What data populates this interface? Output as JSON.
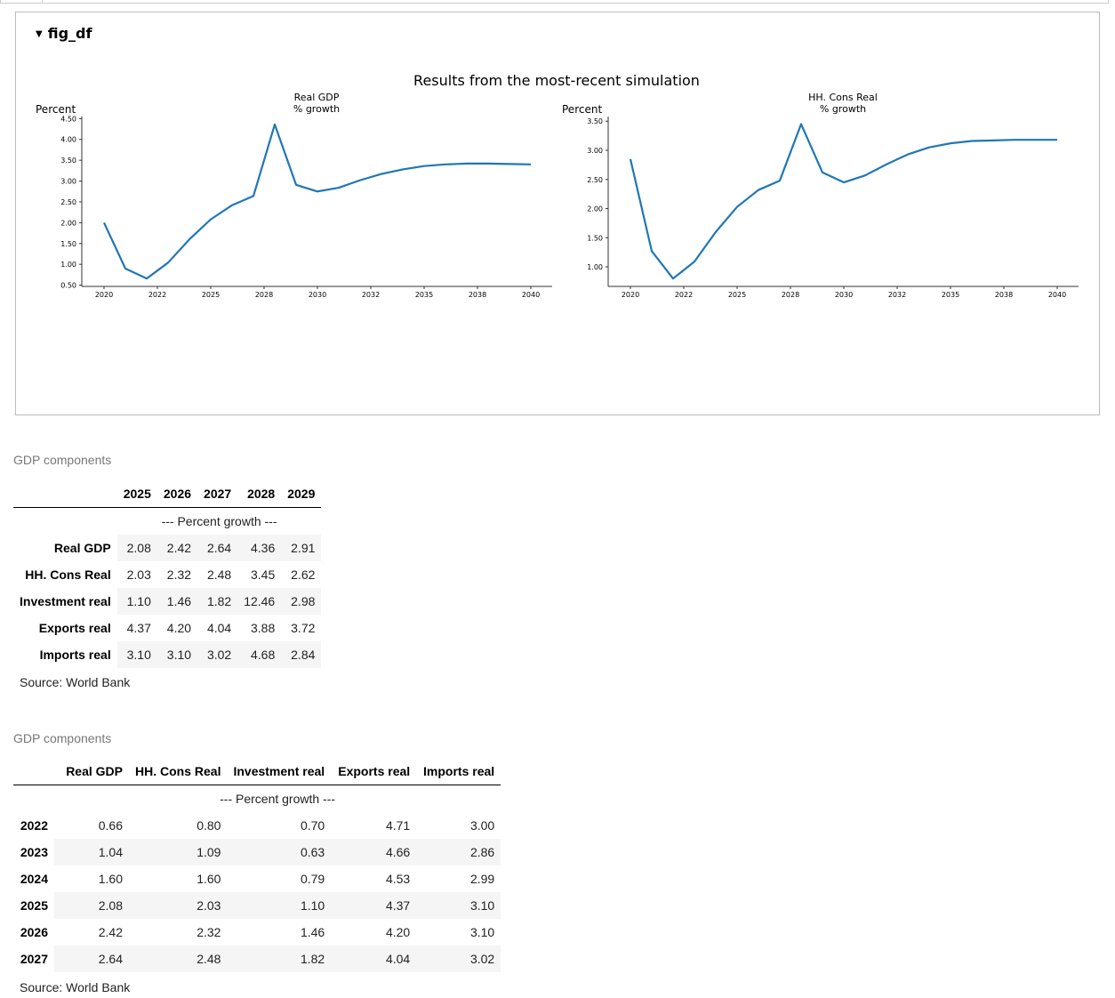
{
  "figure": {
    "toggle_label": "fig_df",
    "suptitle": "Results from the most-recent simulation"
  },
  "chart_data": [
    {
      "type": "line",
      "title": "Real GDP\n% growth",
      "title_lines": [
        "Real GDP",
        "% growth"
      ],
      "ylabel": "Percent",
      "xlabel": "",
      "x": [
        2020,
        2021,
        2022,
        2023,
        2024,
        2025,
        2026,
        2027,
        2028,
        2029,
        2030,
        2031,
        2032,
        2033,
        2034,
        2035,
        2036,
        2037,
        2038,
        2039,
        2040
      ],
      "values": [
        2.0,
        0.9,
        0.66,
        1.04,
        1.6,
        2.08,
        2.42,
        2.64,
        4.36,
        2.91,
        2.75,
        2.84,
        3.02,
        3.17,
        3.28,
        3.36,
        3.4,
        3.42,
        3.42,
        3.41,
        3.4
      ],
      "xtick_labels": [
        "2020",
        "2022",
        "2025",
        "2028",
        "2030",
        "2032",
        "2035",
        "2038",
        "2040"
      ],
      "ytick_labels": [
        "0.50",
        "1.00",
        "1.50",
        "2.00",
        "2.50",
        "3.00",
        "3.50",
        "4.00",
        "4.50"
      ],
      "yticks": [
        0.5,
        1.0,
        1.5,
        2.0,
        2.5,
        3.0,
        3.5,
        4.0,
        4.5
      ],
      "ylim": [
        0.47,
        4.55
      ],
      "color": "#1f77b4",
      "grid": false
    },
    {
      "type": "line",
      "title": "HH. Cons Real\n% growth",
      "title_lines": [
        "HH. Cons Real",
        "% growth"
      ],
      "ylabel": "Percent",
      "xlabel": "",
      "x": [
        2020,
        2021,
        2022,
        2023,
        2024,
        2025,
        2026,
        2027,
        2028,
        2029,
        2030,
        2031,
        2032,
        2033,
        2034,
        2035,
        2036,
        2037,
        2038,
        2039,
        2040
      ],
      "values": [
        2.85,
        1.27,
        0.8,
        1.09,
        1.6,
        2.03,
        2.32,
        2.48,
        3.45,
        2.62,
        2.45,
        2.57,
        2.76,
        2.93,
        3.05,
        3.12,
        3.16,
        3.17,
        3.18,
        3.18,
        3.18
      ],
      "xtick_labels": [
        "2020",
        "2022",
        "2025",
        "2028",
        "2030",
        "2032",
        "2035",
        "2038",
        "2040"
      ],
      "ytick_labels": [
        "1.00",
        "1.50",
        "2.00",
        "2.50",
        "3.00",
        "3.50"
      ],
      "yticks": [
        1.0,
        1.5,
        2.0,
        2.5,
        3.0,
        3.5
      ],
      "ylim": [
        0.665,
        3.58
      ],
      "color": "#1f77b4",
      "grid": false
    }
  ],
  "table1": {
    "caption": "GDP components",
    "columns": [
      "2025",
      "2026",
      "2027",
      "2028",
      "2029"
    ],
    "subheader": "--- Percent growth ---",
    "rows": [
      {
        "label": "Real GDP",
        "values": [
          "2.08",
          "2.42",
          "2.64",
          "4.36",
          "2.91"
        ]
      },
      {
        "label": "HH. Cons Real",
        "values": [
          "2.03",
          "2.32",
          "2.48",
          "3.45",
          "2.62"
        ]
      },
      {
        "label": "Investment real",
        "values": [
          "1.10",
          "1.46",
          "1.82",
          "12.46",
          "2.98"
        ]
      },
      {
        "label": "Exports real",
        "values": [
          "4.37",
          "4.20",
          "4.04",
          "3.88",
          "3.72"
        ]
      },
      {
        "label": "Imports real",
        "values": [
          "3.10",
          "3.10",
          "3.02",
          "4.68",
          "2.84"
        ]
      }
    ],
    "source": "Source: World Bank"
  },
  "table2": {
    "caption": "GDP components",
    "columns": [
      "Real GDP",
      "HH. Cons Real",
      "Investment real",
      "Exports real",
      "Imports real"
    ],
    "subheader": "--- Percent growth ---",
    "rows": [
      {
        "label": "2022",
        "values": [
          "0.66",
          "0.80",
          "0.70",
          "4.71",
          "3.00"
        ]
      },
      {
        "label": "2023",
        "values": [
          "1.04",
          "1.09",
          "0.63",
          "4.66",
          "2.86"
        ]
      },
      {
        "label": "2024",
        "values": [
          "1.60",
          "1.60",
          "0.79",
          "4.53",
          "2.99"
        ]
      },
      {
        "label": "2025",
        "values": [
          "2.08",
          "2.03",
          "1.10",
          "4.37",
          "3.10"
        ]
      },
      {
        "label": "2026",
        "values": [
          "2.42",
          "2.32",
          "1.46",
          "4.20",
          "3.10"
        ]
      },
      {
        "label": "2027",
        "values": [
          "2.64",
          "2.48",
          "1.82",
          "4.04",
          "3.02"
        ]
      }
    ],
    "source": "Source: World Bank"
  }
}
